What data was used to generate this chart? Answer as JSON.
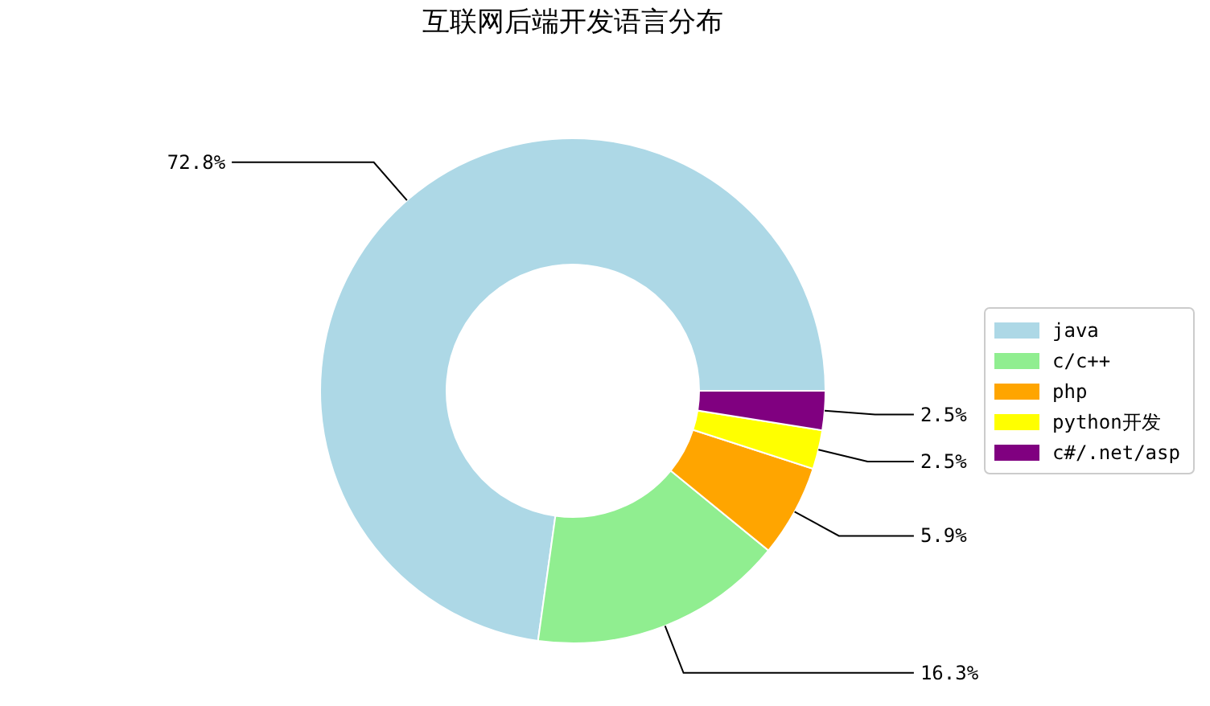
{
  "chart_data": {
    "type": "donut",
    "title": "互联网后端开发语言分布",
    "categories": [
      "java",
      "c/c++",
      "php",
      "python开发",
      "c#/.net/asp"
    ],
    "values": [
      72.8,
      16.3,
      5.9,
      2.5,
      2.5
    ],
    "colors": [
      "#add8e6",
      "#90ee90",
      "#ffa500",
      "#ffff00",
      "#800080"
    ],
    "value_labels": [
      "72.8%",
      "16.3%",
      "5.9%",
      "2.5%",
      "2.5%"
    ],
    "legend": "right"
  }
}
